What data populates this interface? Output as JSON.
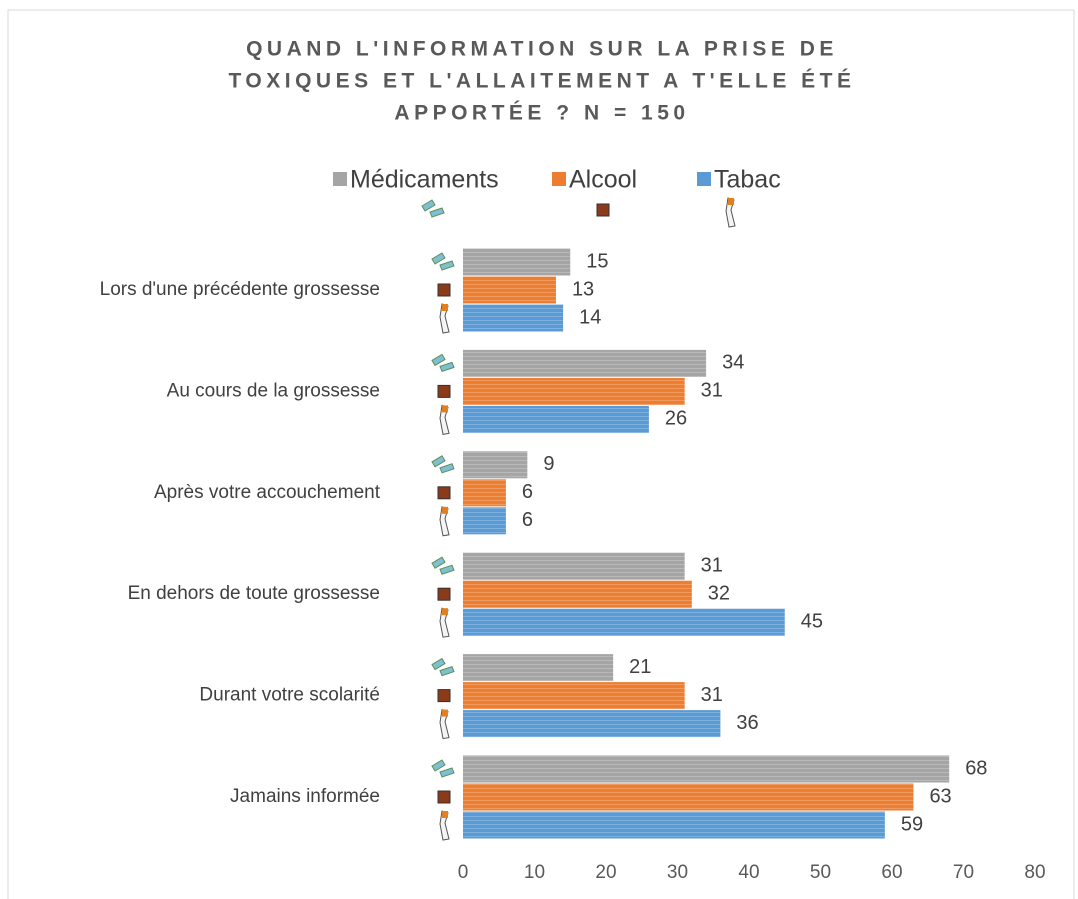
{
  "chart_data": {
    "type": "barh",
    "title": [
      "QUAND L'INFORMATION SUR LA PRISE DE",
      "TOXIQUES ET L'ALLAITEMENT A T'ELLE ÉTÉ",
      "APPORTÉE ? N = 150"
    ],
    "categories": [
      "Lors d'une précédente grossesse",
      "Au cours de la grossesse",
      "Après votre accouchement",
      "En dehors de toute grossesse",
      "Durant votre scolarité",
      "Jamains informée"
    ],
    "series": [
      {
        "name": "Médicaments",
        "color": "#a5a5a5",
        "values": [
          15,
          34,
          9,
          31,
          21,
          68
        ]
      },
      {
        "name": "Alcool",
        "color": "#ed7d31",
        "values": [
          13,
          31,
          6,
          32,
          31,
          63
        ]
      },
      {
        "name": "Tabac",
        "color": "#5b9bd5",
        "values": [
          14,
          26,
          6,
          45,
          36,
          59
        ]
      }
    ],
    "xlim": [
      0,
      80
    ],
    "xticks": [
      0,
      10,
      20,
      30,
      40,
      50,
      60,
      70,
      80
    ],
    "legend": "top"
  }
}
